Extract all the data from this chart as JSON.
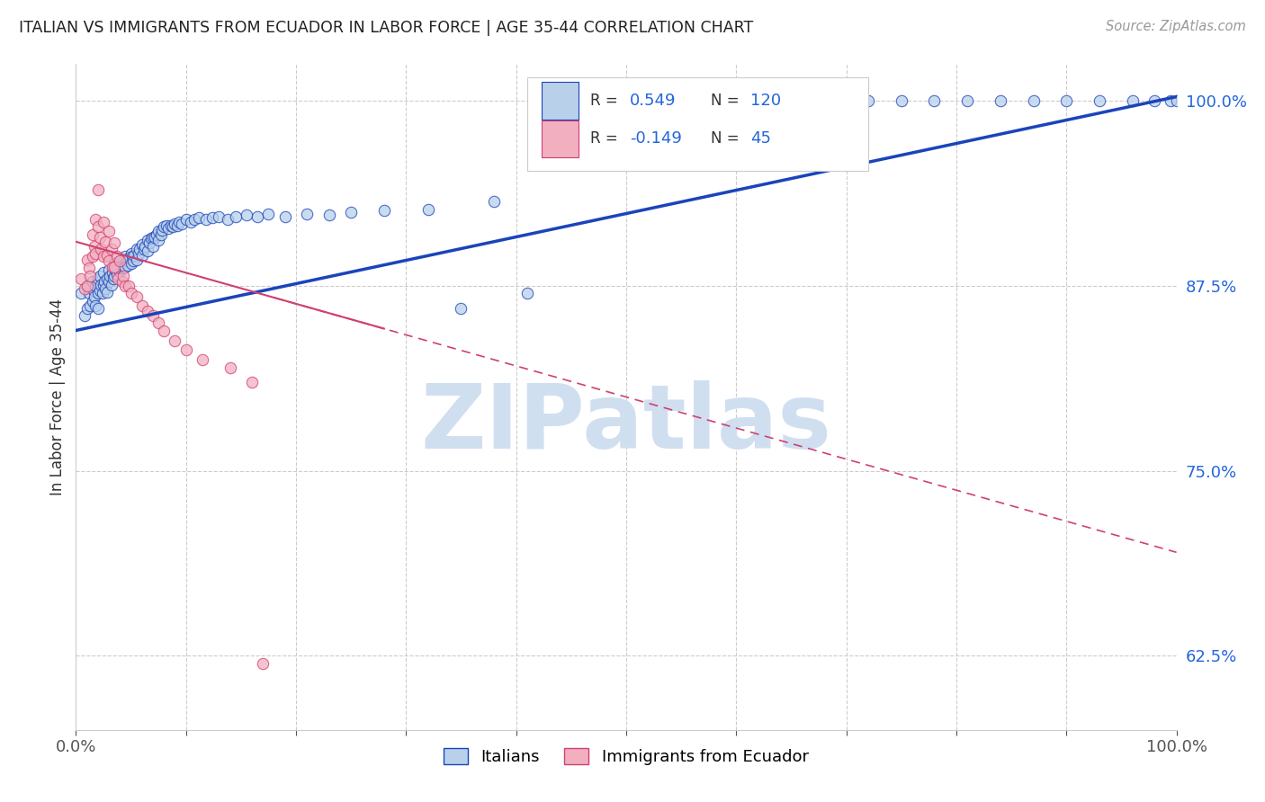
{
  "title": "ITALIAN VS IMMIGRANTS FROM ECUADOR IN LABOR FORCE | AGE 35-44 CORRELATION CHART",
  "source": "Source: ZipAtlas.com",
  "ylabel": "In Labor Force | Age 35-44",
  "xlim": [
    0.0,
    1.0
  ],
  "ylim": [
    0.575,
    1.025
  ],
  "yticks": [
    0.625,
    0.75,
    0.875,
    1.0
  ],
  "ytick_labels": [
    "62.5%",
    "75.0%",
    "87.5%",
    "100.0%"
  ],
  "xticks": [
    0.0,
    0.1,
    0.2,
    0.3,
    0.4,
    0.5,
    0.6,
    0.7,
    0.8,
    0.9,
    1.0
  ],
  "blue_R": 0.549,
  "blue_N": 120,
  "pink_R": -0.149,
  "pink_N": 45,
  "blue_color": "#b8d0ea",
  "pink_color": "#f2afc0",
  "blue_line_color": "#1a44bb",
  "pink_line_color": "#d04070",
  "watermark": "ZIPatlas",
  "watermark_color": "#d0dff0",
  "legend_label_blue": "Italians",
  "legend_label_pink": "Immigrants from Ecuador",
  "blue_scatter_x": [
    0.005,
    0.008,
    0.01,
    0.01,
    0.012,
    0.013,
    0.015,
    0.015,
    0.016,
    0.017,
    0.018,
    0.018,
    0.02,
    0.02,
    0.02,
    0.022,
    0.022,
    0.023,
    0.024,
    0.025,
    0.025,
    0.026,
    0.027,
    0.028,
    0.028,
    0.03,
    0.03,
    0.031,
    0.032,
    0.033,
    0.034,
    0.035,
    0.035,
    0.036,
    0.037,
    0.038,
    0.04,
    0.04,
    0.041,
    0.042,
    0.043,
    0.044,
    0.045,
    0.045,
    0.046,
    0.047,
    0.048,
    0.05,
    0.05,
    0.051,
    0.052,
    0.053,
    0.055,
    0.055,
    0.057,
    0.058,
    0.06,
    0.06,
    0.062,
    0.063,
    0.065,
    0.065,
    0.067,
    0.068,
    0.07,
    0.07,
    0.072,
    0.073,
    0.075,
    0.075,
    0.077,
    0.078,
    0.08,
    0.082,
    0.084,
    0.086,
    0.088,
    0.09,
    0.092,
    0.094,
    0.096,
    0.1,
    0.104,
    0.108,
    0.112,
    0.118,
    0.124,
    0.13,
    0.138,
    0.145,
    0.155,
    0.165,
    0.175,
    0.19,
    0.21,
    0.23,
    0.25,
    0.28,
    0.32,
    0.38,
    0.43,
    0.48,
    0.55,
    0.61,
    0.64,
    0.68,
    0.72,
    0.75,
    0.78,
    0.81,
    0.84,
    0.87,
    0.9,
    0.93,
    0.96,
    0.98,
    0.995,
    1.0,
    0.35,
    0.41
  ],
  "blue_scatter_y": [
    0.87,
    0.855,
    0.875,
    0.86,
    0.87,
    0.862,
    0.878,
    0.865,
    0.872,
    0.868,
    0.875,
    0.862,
    0.88,
    0.87,
    0.86,
    0.882,
    0.872,
    0.876,
    0.87,
    0.884,
    0.876,
    0.878,
    0.873,
    0.88,
    0.871,
    0.886,
    0.878,
    0.882,
    0.876,
    0.884,
    0.88,
    0.89,
    0.882,
    0.886,
    0.883,
    0.888,
    0.892,
    0.885,
    0.89,
    0.887,
    0.892,
    0.888,
    0.895,
    0.888,
    0.892,
    0.889,
    0.894,
    0.897,
    0.89,
    0.895,
    0.892,
    0.896,
    0.9,
    0.893,
    0.897,
    0.9,
    0.903,
    0.896,
    0.9,
    0.902,
    0.906,
    0.899,
    0.904,
    0.907,
    0.908,
    0.902,
    0.908,
    0.91,
    0.912,
    0.906,
    0.91,
    0.913,
    0.915,
    0.916,
    0.914,
    0.916,
    0.915,
    0.917,
    0.916,
    0.918,
    0.917,
    0.92,
    0.918,
    0.92,
    0.921,
    0.92,
    0.921,
    0.922,
    0.92,
    0.922,
    0.923,
    0.922,
    0.924,
    0.922,
    0.924,
    0.923,
    0.925,
    0.926,
    0.927,
    0.932,
    0.96,
    0.975,
    1.0,
    1.0,
    1.0,
    1.0,
    1.0,
    1.0,
    1.0,
    1.0,
    1.0,
    1.0,
    1.0,
    1.0,
    1.0,
    1.0,
    1.0,
    1.0,
    0.86,
    0.87
  ],
  "pink_scatter_x": [
    0.005,
    0.008,
    0.01,
    0.01,
    0.012,
    0.013,
    0.015,
    0.015,
    0.017,
    0.018,
    0.018,
    0.02,
    0.02,
    0.022,
    0.023,
    0.025,
    0.025,
    0.027,
    0.028,
    0.03,
    0.03,
    0.032,
    0.033,
    0.035,
    0.035,
    0.037,
    0.038,
    0.04,
    0.042,
    0.043,
    0.045,
    0.048,
    0.05,
    0.055,
    0.06,
    0.065,
    0.07,
    0.075,
    0.08,
    0.09,
    0.1,
    0.115,
    0.14,
    0.16,
    0.17
  ],
  "pink_scatter_y": [
    0.88,
    0.873,
    0.893,
    0.875,
    0.887,
    0.882,
    0.91,
    0.895,
    0.902,
    0.92,
    0.897,
    0.94,
    0.915,
    0.908,
    0.9,
    0.918,
    0.895,
    0.905,
    0.896,
    0.912,
    0.892,
    0.9,
    0.888,
    0.904,
    0.888,
    0.895,
    0.88,
    0.892,
    0.878,
    0.882,
    0.875,
    0.875,
    0.87,
    0.868,
    0.862,
    0.858,
    0.855,
    0.85,
    0.845,
    0.838,
    0.832,
    0.825,
    0.82,
    0.81,
    0.62
  ],
  "blue_trend_x0": 0.0,
  "blue_trend_x1": 1.0,
  "blue_trend_y0": 0.845,
  "blue_trend_y1": 1.003,
  "pink_trend_x0": 0.0,
  "pink_trend_x1": 1.0,
  "pink_trend_y0": 0.905,
  "pink_trend_y1": 0.695
}
